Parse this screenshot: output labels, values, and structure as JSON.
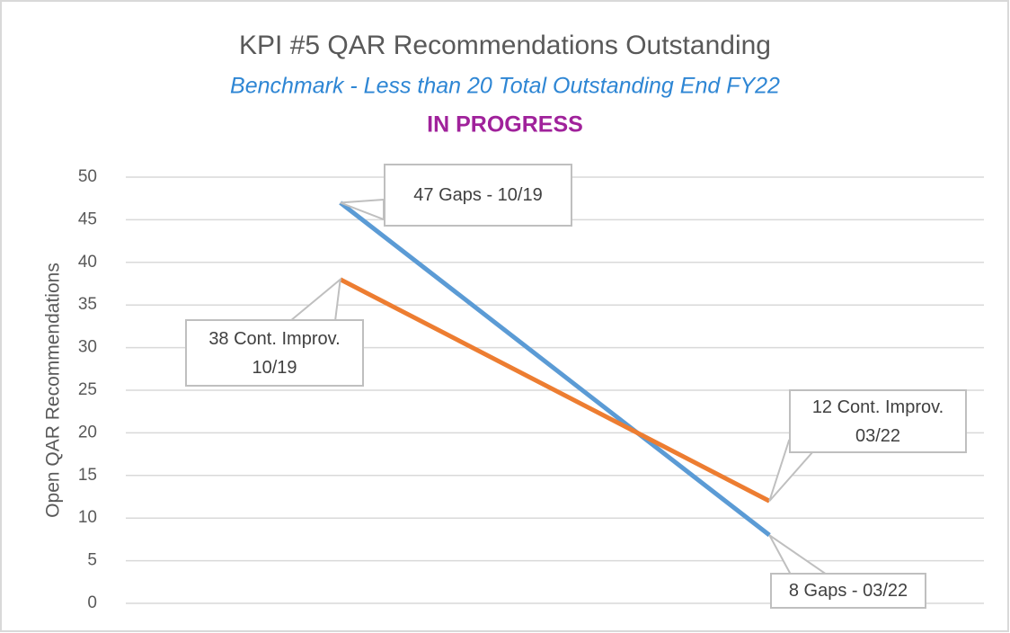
{
  "chart_data": {
    "type": "line",
    "title": "KPI #5 QAR Recommendations  Outstanding",
    "subtitle": "Benchmark - Less than 20 Total Outstanding End FY22",
    "annotation": "IN PROGRESS",
    "ylabel": "Open QAR Recommendations",
    "categories": [
      null,
      null
    ],
    "series": [
      {
        "color": "#5b9bd5",
        "values": [
          47,
          8
        ],
        "value_labels": [
          "47 Gaps - 10/19",
          "8 Gaps - 03/22"
        ]
      },
      {
        "color": "#ed7d31",
        "values": [
          38,
          12
        ],
        "value_labels": [
          "38 Cont. Improv. 10/19",
          "12 Cont. Improv. 03/22"
        ]
      }
    ],
    "ylim": [
      0,
      50
    ],
    "yticks": [
      0,
      5,
      10,
      15,
      20,
      25,
      30,
      35,
      40,
      45,
      50
    ],
    "grid": true
  }
}
